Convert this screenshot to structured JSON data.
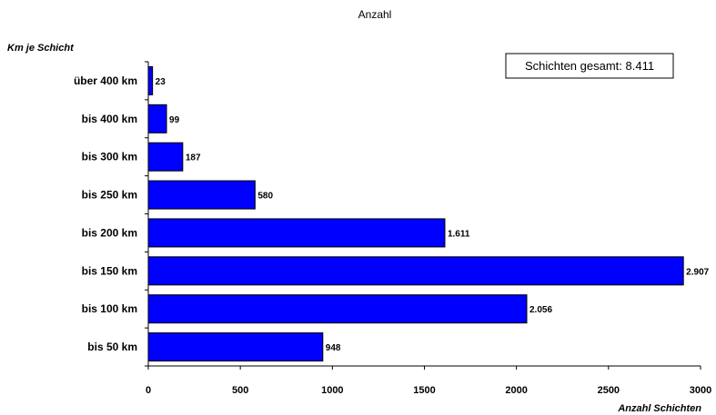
{
  "chart_data": {
    "type": "bar",
    "orientation": "horizontal",
    "title": "Anzahl",
    "ylabel": "Km je Schicht",
    "xlabel": "Anzahl Schichten",
    "categories": [
      "über 400 km",
      "bis 400 km",
      "bis 300 km",
      "bis 250 km",
      "bis 200 km",
      "bis 150 km",
      "bis 100 km",
      "bis 50 km"
    ],
    "values": [
      23,
      99,
      187,
      580,
      1611,
      2907,
      2056,
      948
    ],
    "value_labels": [
      "23",
      "99",
      "187",
      "580",
      "1.611",
      "2.907",
      "2.056",
      "948"
    ],
    "xlim": [
      0,
      3000
    ],
    "xticks": [
      0,
      500,
      1000,
      1500,
      2000,
      2500,
      3000
    ],
    "xtick_labels": [
      "0",
      "500",
      "1000",
      "1500",
      "2000",
      "2500",
      "3000"
    ],
    "annotation": "Schichten gesamt: 8.411",
    "grid": false,
    "legend": "none",
    "bar_color": "#0000ff",
    "bar_edge_color": "#000000"
  }
}
